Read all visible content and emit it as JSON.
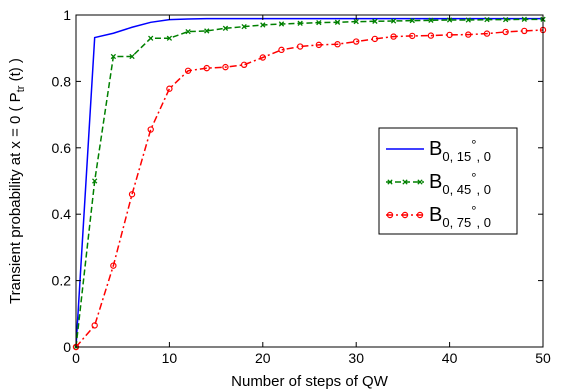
{
  "chart_data": {
    "type": "line",
    "xlabel": "Number of steps of QW",
    "ylabel": {
      "main": "Transient probability at  x = 0 ( P",
      "sub": "tr",
      "tail": " (t) )"
    },
    "xlim": [
      0,
      50
    ],
    "ylim": [
      0,
      1
    ],
    "xticks": [
      0,
      10,
      20,
      30,
      40,
      50
    ],
    "yticks": [
      0,
      0.2,
      0.4,
      0.6,
      0.8,
      1
    ],
    "xtick_labels": [
      "0",
      "10",
      "20",
      "30",
      "40",
      "50"
    ],
    "ytick_labels": [
      "0",
      "0.2",
      "0.4",
      "0.6",
      "0.8",
      "1"
    ],
    "grid": false,
    "legend_position": "right",
    "series": [
      {
        "label": {
          "main": "B",
          "sub": "0, 15",
          "deg": "°",
          "tail": ", 0"
        },
        "color": "#0000ff",
        "dash": "solid",
        "marker": "none",
        "x": [
          0,
          2,
          4,
          6,
          8,
          10,
          12,
          14,
          16,
          18,
          20,
          22,
          24,
          26,
          28,
          30,
          32,
          34,
          36,
          38,
          40,
          42,
          44,
          46,
          48,
          50
        ],
        "y": [
          0,
          0.932,
          0.945,
          0.963,
          0.978,
          0.986,
          0.988,
          0.989,
          0.989,
          0.989,
          0.989,
          0.989,
          0.989,
          0.989,
          0.989,
          0.989,
          0.989,
          0.989,
          0.989,
          0.989,
          0.989,
          0.989,
          0.989,
          0.989,
          0.989,
          0.989
        ]
      },
      {
        "label": {
          "main": "B",
          "sub": "0, 45",
          "deg": "°",
          "tail": ", 0"
        },
        "color": "#008000",
        "dash": "dashed",
        "marker": "x",
        "x": [
          0,
          2,
          4,
          6,
          8,
          10,
          12,
          14,
          16,
          18,
          20,
          22,
          24,
          26,
          28,
          30,
          32,
          34,
          36,
          38,
          40,
          42,
          44,
          46,
          48,
          50
        ],
        "y": [
          0,
          0.5,
          0.875,
          0.875,
          0.93,
          0.93,
          0.95,
          0.952,
          0.96,
          0.965,
          0.97,
          0.973,
          0.975,
          0.977,
          0.978,
          0.98,
          0.981,
          0.982,
          0.983,
          0.984,
          0.985,
          0.985,
          0.986,
          0.986,
          0.987,
          0.987
        ]
      },
      {
        "label": {
          "main": "B",
          "sub": "0, 75",
          "deg": "°",
          "tail": ", 0"
        },
        "color": "#ff0000",
        "dash": "dashdot",
        "marker": "o",
        "x": [
          0,
          2,
          4,
          6,
          8,
          10,
          12,
          14,
          16,
          18,
          20,
          22,
          24,
          26,
          28,
          30,
          32,
          34,
          36,
          38,
          40,
          42,
          44,
          46,
          48,
          50
        ],
        "y": [
          0,
          0.065,
          0.245,
          0.46,
          0.655,
          0.778,
          0.832,
          0.84,
          0.843,
          0.85,
          0.872,
          0.895,
          0.905,
          0.91,
          0.912,
          0.92,
          0.928,
          0.935,
          0.937,
          0.938,
          0.94,
          0.941,
          0.944,
          0.949,
          0.952,
          0.955
        ]
      }
    ]
  }
}
